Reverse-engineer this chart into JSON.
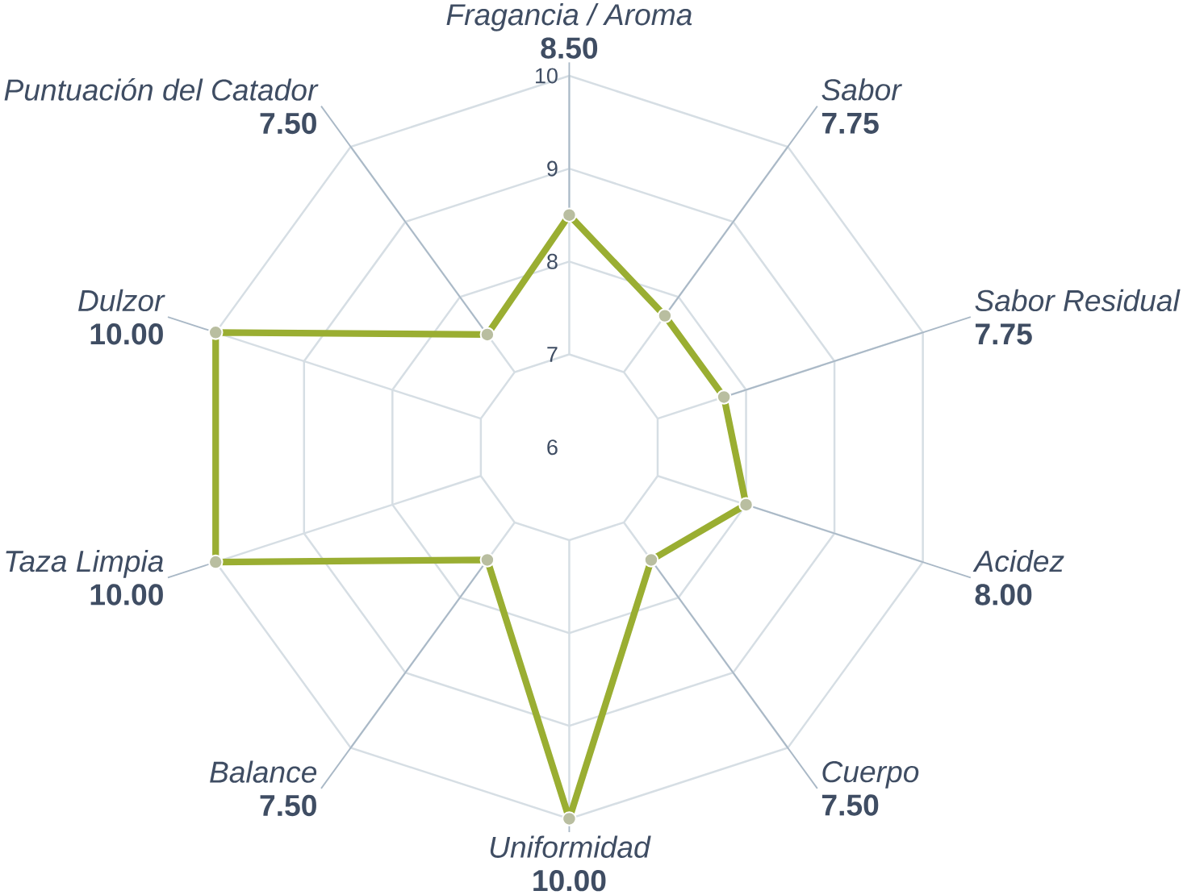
{
  "chart_data": {
    "type": "radar",
    "categories": [
      "Fragancia / Aroma",
      "Sabor",
      "Sabor Residual",
      "Acidez",
      "Cuerpo",
      "Uniformidad",
      "Balance",
      "Taza Limpia",
      "Dulzor",
      "Puntuación del Catador"
    ],
    "series": [
      {
        "color": "#9aae32",
        "values": [
          8.5,
          7.75,
          7.75,
          8.0,
          7.5,
          10.0,
          7.5,
          10.0,
          10.0,
          7.5
        ],
        "value_labels": [
          "8.50",
          "7.75",
          "7.75",
          "8.00",
          "7.50",
          "10.00",
          "7.50",
          "10.00",
          "10.00",
          "7.50"
        ]
      }
    ],
    "ylim": [
      6,
      10
    ],
    "yticks": [
      6,
      7,
      8,
      9,
      10
    ],
    "grid": true,
    "marker": "circle"
  }
}
